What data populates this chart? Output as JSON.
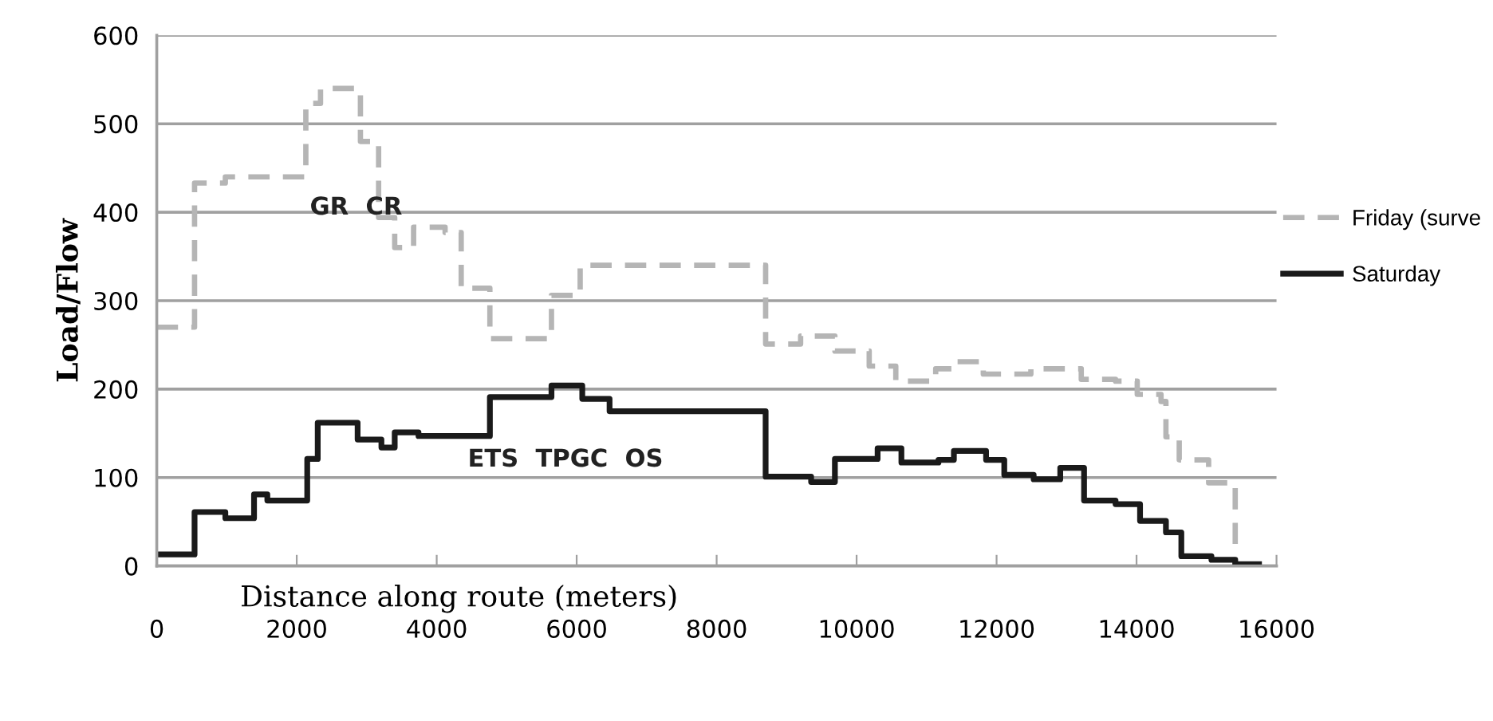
{
  "chart_data": {
    "type": "step",
    "xlabel": "Distance along route (meters)",
    "ylabel": "Load/Flow",
    "xlim": [
      0,
      16000
    ],
    "xticks": [
      0,
      2000,
      4000,
      6000,
      8000,
      10000,
      12000,
      14000,
      16000
    ],
    "ylim": [
      0,
      600
    ],
    "yticks": [
      0,
      100,
      200,
      300,
      400,
      500,
      600
    ],
    "grid": "y",
    "legend": "right",
    "marker": "none",
    "series": [
      {
        "name": "Friday (surve",
        "color": "#b5b5b5",
        "line_style": "dashed",
        "x": [
          0,
          540,
          980,
          2130,
          2340,
          2910,
          3170,
          3400,
          3670,
          4120,
          4350,
          4760,
          5640,
          6050,
          8700,
          9200,
          9690,
          10180,
          10560,
          11130,
          11390,
          11810,
          12490,
          13210,
          13700,
          14010,
          14350,
          14420,
          14610,
          15030,
          15410
        ],
        "values": [
          270,
          433,
          440,
          523,
          540,
          480,
          394,
          360,
          383,
          377,
          314,
          257,
          306,
          340,
          251,
          260,
          243,
          226,
          209,
          223,
          231,
          217,
          223,
          211,
          209,
          194,
          186,
          146,
          120,
          94,
          0
        ]
      },
      {
        "name": "Saturday",
        "color": "#1a1a1a",
        "line_style": "solid",
        "x": [
          0,
          540,
          980,
          1390,
          1580,
          2150,
          2300,
          2870,
          3210,
          3400,
          3740,
          4760,
          5640,
          6080,
          6470,
          8700,
          9350,
          9690,
          10300,
          10640,
          11170,
          11390,
          11850,
          12110,
          12530,
          12910,
          13250,
          13700,
          14050,
          14420,
          14640,
          15070,
          15410,
          15750
        ],
        "values": [
          13,
          61,
          54,
          81,
          74,
          121,
          162,
          143,
          134,
          151,
          147,
          191,
          204,
          189,
          175,
          101,
          95,
          121,
          133,
          117,
          120,
          130,
          120,
          103,
          98,
          111,
          74,
          70,
          51,
          38,
          11,
          7,
          2,
          2
        ]
      }
    ],
    "annotations": [
      "GR  CR",
      "ETS  TPGC  OS"
    ]
  }
}
